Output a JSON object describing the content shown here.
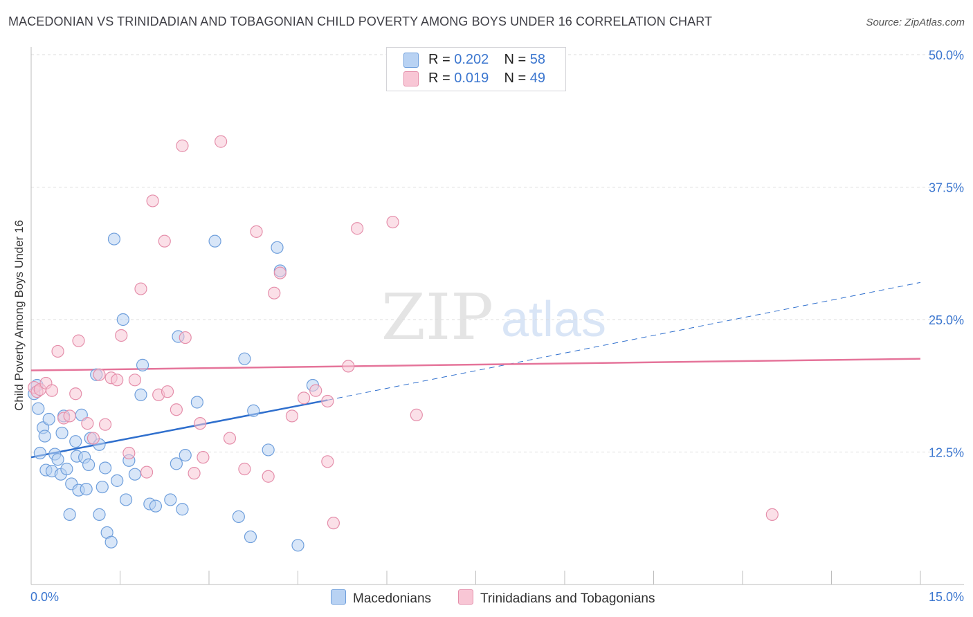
{
  "title": "MACEDONIAN VS TRINIDADIAN AND TOBAGONIAN CHILD POVERTY AMONG BOYS UNDER 16 CORRELATION CHART",
  "source": "Source: ZipAtlas.com",
  "watermark": {
    "zip": "ZIP",
    "atlas": "atlas"
  },
  "legend": {
    "macedonians": {
      "r_label": "R =",
      "r_value": "0.202",
      "n_label": "N =",
      "n_value": "58"
    },
    "trinidadians": {
      "r_label": "R =",
      "r_value": "0.019",
      "n_label": "N =",
      "n_value": "49"
    }
  },
  "bottom_legend": {
    "macedonians": "Macedonians",
    "trinidadians": "Trinidadians and Tobagonians"
  },
  "colors": {
    "blue_fill": "#b8d2f3",
    "blue_stroke": "#6f9fdc",
    "blue_line": "#2f6fcd",
    "pink_fill": "#f8c6d5",
    "pink_stroke": "#e58fab",
    "pink_line": "#e5749a",
    "axis_text": "#3b76cf",
    "grid": "#dcdcdc"
  },
  "chart_data": {
    "type": "scatter",
    "title": "MACEDONIAN VS TRINIDADIAN AND TOBAGONIAN CHILD POVERTY AMONG BOYS UNDER 16 CORRELATION CHART",
    "xlabel": "",
    "ylabel": "Child Poverty Among Boys Under 16",
    "xlim": [
      0,
      15
    ],
    "ylim": [
      0,
      50
    ],
    "y_ticks": [
      12.5,
      25.0,
      37.5,
      50.0
    ],
    "y_tick_labels": [
      "12.5%",
      "25.0%",
      "37.5%",
      "50.0%"
    ],
    "x_tick_labels": [
      "0.0%",
      "15.0%"
    ],
    "x_minor_ticks": [
      1.5,
      3,
      4.5,
      6,
      7.5,
      9,
      10.5,
      12,
      13.5,
      15
    ],
    "series": [
      {
        "name": "Macedonians",
        "color": "blue",
        "points": [
          [
            0.05,
            18.0
          ],
          [
            0.1,
            18.8
          ],
          [
            0.12,
            16.6
          ],
          [
            0.15,
            12.4
          ],
          [
            0.2,
            14.8
          ],
          [
            0.23,
            14.0
          ],
          [
            0.25,
            10.8
          ],
          [
            0.3,
            15.6
          ],
          [
            0.35,
            10.7
          ],
          [
            0.4,
            12.3
          ],
          [
            0.45,
            11.8
          ],
          [
            0.5,
            10.4
          ],
          [
            0.52,
            14.3
          ],
          [
            0.55,
            15.9
          ],
          [
            0.6,
            10.9
          ],
          [
            0.65,
            6.6
          ],
          [
            0.68,
            9.5
          ],
          [
            0.75,
            13.5
          ],
          [
            0.77,
            12.1
          ],
          [
            0.8,
            8.9
          ],
          [
            0.85,
            16.0
          ],
          [
            0.9,
            12.0
          ],
          [
            0.93,
            9.0
          ],
          [
            0.97,
            11.3
          ],
          [
            1.0,
            13.8
          ],
          [
            1.1,
            19.8
          ],
          [
            1.15,
            6.6
          ],
          [
            1.15,
            13.2
          ],
          [
            1.2,
            9.2
          ],
          [
            1.25,
            11.0
          ],
          [
            1.28,
            4.9
          ],
          [
            1.35,
            4.0
          ],
          [
            1.4,
            32.6
          ],
          [
            1.45,
            9.8
          ],
          [
            1.55,
            25.0
          ],
          [
            1.6,
            8.0
          ],
          [
            1.65,
            11.7
          ],
          [
            1.75,
            10.4
          ],
          [
            1.85,
            17.9
          ],
          [
            1.88,
            20.7
          ],
          [
            2.0,
            7.6
          ],
          [
            2.1,
            7.4
          ],
          [
            2.35,
            8.0
          ],
          [
            2.45,
            11.4
          ],
          [
            2.48,
            23.4
          ],
          [
            2.55,
            7.1
          ],
          [
            2.6,
            12.2
          ],
          [
            2.8,
            17.2
          ],
          [
            3.1,
            32.4
          ],
          [
            3.5,
            6.4
          ],
          [
            3.6,
            21.3
          ],
          [
            3.7,
            4.5
          ],
          [
            3.75,
            16.4
          ],
          [
            4.0,
            12.7
          ],
          [
            4.15,
            31.8
          ],
          [
            4.2,
            29.6
          ],
          [
            4.5,
            3.7
          ],
          [
            4.75,
            18.8
          ]
        ]
      },
      {
        "name": "Trinidadians and Tobagonians",
        "color": "pink",
        "points": [
          [
            0.05,
            18.6
          ],
          [
            0.1,
            18.2
          ],
          [
            0.15,
            18.4
          ],
          [
            0.25,
            19.0
          ],
          [
            0.35,
            18.3
          ],
          [
            0.45,
            22.0
          ],
          [
            0.55,
            15.7
          ],
          [
            0.65,
            15.9
          ],
          [
            0.75,
            18.0
          ],
          [
            0.8,
            23.0
          ],
          [
            0.95,
            15.2
          ],
          [
            1.05,
            13.8
          ],
          [
            1.15,
            19.8
          ],
          [
            1.25,
            15.1
          ],
          [
            1.35,
            19.5
          ],
          [
            1.45,
            19.3
          ],
          [
            1.52,
            23.5
          ],
          [
            1.65,
            12.4
          ],
          [
            1.75,
            19.3
          ],
          [
            1.85,
            27.9
          ],
          [
            1.95,
            10.6
          ],
          [
            2.05,
            36.2
          ],
          [
            2.15,
            17.9
          ],
          [
            2.25,
            32.4
          ],
          [
            2.3,
            18.2
          ],
          [
            2.45,
            16.5
          ],
          [
            2.55,
            41.4
          ],
          [
            2.6,
            23.3
          ],
          [
            2.75,
            10.5
          ],
          [
            2.85,
            15.2
          ],
          [
            2.9,
            12.0
          ],
          [
            3.2,
            41.8
          ],
          [
            3.35,
            13.8
          ],
          [
            3.6,
            10.9
          ],
          [
            3.8,
            33.3
          ],
          [
            4.0,
            10.2
          ],
          [
            4.1,
            27.5
          ],
          [
            4.2,
            29.4
          ],
          [
            4.4,
            15.9
          ],
          [
            4.6,
            17.6
          ],
          [
            4.8,
            18.3
          ],
          [
            5.0,
            17.3
          ],
          [
            5.0,
            11.6
          ],
          [
            5.1,
            5.8
          ],
          [
            5.35,
            20.6
          ],
          [
            5.5,
            33.6
          ],
          [
            6.1,
            34.2
          ],
          [
            6.5,
            16.0
          ],
          [
            12.5,
            6.6
          ]
        ]
      }
    ],
    "trend_lines": [
      {
        "series": "Macedonians",
        "from": [
          0,
          12.0
        ],
        "to": [
          5.0,
          17.4
        ],
        "dashed_to": [
          15.0,
          28.5
        ]
      },
      {
        "series": "Trinidadians and Tobagonians",
        "from": [
          0,
          20.2
        ],
        "to": [
          15.0,
          21.3
        ]
      }
    ]
  }
}
